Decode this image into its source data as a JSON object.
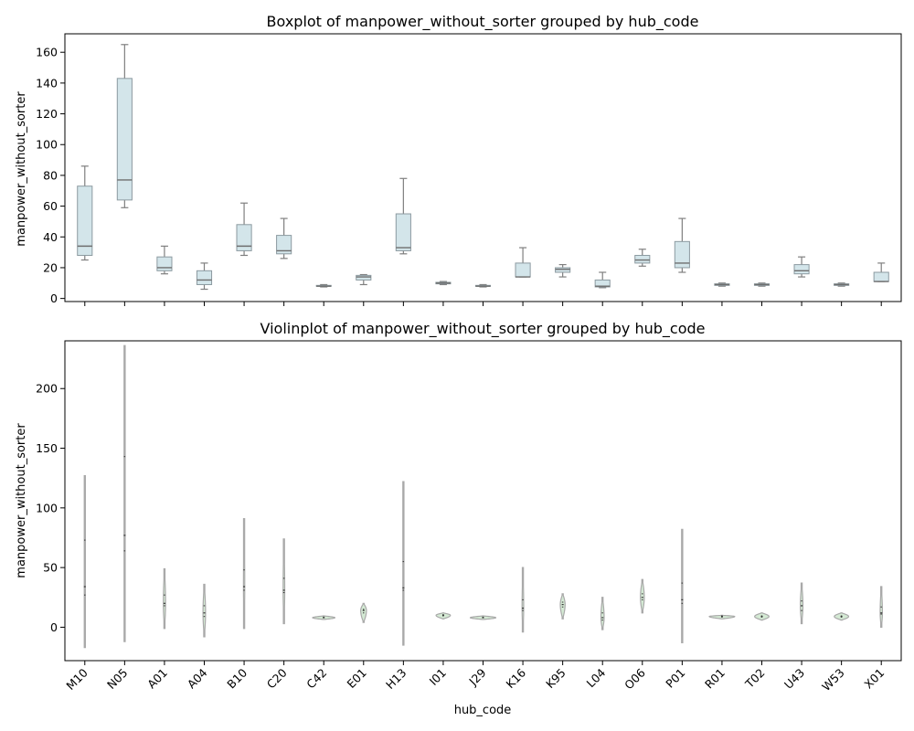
{
  "chart_data": [
    {
      "type": "box",
      "title": "Boxplot of manpower_without_sorter grouped by hub_code",
      "xlabel": "",
      "ylabel": "manpower_without_sorter",
      "ylim": [
        -2,
        172
      ],
      "yticks": [
        0,
        20,
        40,
        60,
        80,
        100,
        120,
        140,
        160
      ],
      "categories": [
        "M10",
        "N05",
        "A01",
        "A04",
        "B10",
        "C20",
        "C42",
        "E01",
        "H13",
        "I01",
        "J29",
        "K16",
        "K95",
        "L04",
        "O06",
        "P01",
        "R01",
        "T02",
        "U43",
        "W53",
        "X01"
      ],
      "boxes": [
        {
          "whislo": 25,
          "q1": 28,
          "med": 34,
          "q3": 73,
          "whishi": 86
        },
        {
          "whislo": 59,
          "q1": 64,
          "med": 77,
          "q3": 143,
          "whishi": 165
        },
        {
          "whislo": 16,
          "q1": 18,
          "med": 20,
          "q3": 27,
          "whishi": 34
        },
        {
          "whislo": 6,
          "q1": 9,
          "med": 12,
          "q3": 18,
          "whishi": 23
        },
        {
          "whislo": 28,
          "q1": 31,
          "med": 34,
          "q3": 48,
          "whishi": 62
        },
        {
          "whislo": 26,
          "q1": 29,
          "med": 31,
          "q3": 41,
          "whishi": 52
        },
        {
          "whislo": 7.5,
          "q1": 8,
          "med": 8,
          "q3": 8.5,
          "whishi": 9
        },
        {
          "whislo": 9,
          "q1": 12,
          "med": 14,
          "q3": 15,
          "whishi": 15.5
        },
        {
          "whislo": 29,
          "q1": 31,
          "med": 33,
          "q3": 55,
          "whishi": 78
        },
        {
          "whislo": 9,
          "q1": 9.5,
          "med": 10,
          "q3": 10.5,
          "whishi": 11
        },
        {
          "whislo": 7.5,
          "q1": 8,
          "med": 8,
          "q3": 8.5,
          "whishi": 9
        },
        {
          "whislo": 14,
          "q1": 14,
          "med": 14,
          "q3": 23,
          "whishi": 33
        },
        {
          "whislo": 14,
          "q1": 17,
          "med": 19,
          "q3": 20,
          "whishi": 22
        },
        {
          "whislo": 7,
          "q1": 7.5,
          "med": 8,
          "q3": 12,
          "whishi": 17
        },
        {
          "whislo": 21,
          "q1": 23,
          "med": 25,
          "q3": 28,
          "whishi": 32
        },
        {
          "whislo": 17,
          "q1": 20,
          "med": 23,
          "q3": 37,
          "whishi": 52
        },
        {
          "whislo": 8,
          "q1": 8.5,
          "med": 9,
          "q3": 9.5,
          "whishi": 10
        },
        {
          "whislo": 8,
          "q1": 8.5,
          "med": 9,
          "q3": 9.5,
          "whishi": 10
        },
        {
          "whislo": 14,
          "q1": 16,
          "med": 18,
          "q3": 22,
          "whishi": 27
        },
        {
          "whislo": 8,
          "q1": 8.5,
          "med": 9,
          "q3": 9.5,
          "whishi": 10
        },
        {
          "whislo": 11,
          "q1": 11,
          "med": 11,
          "q3": 17,
          "whishi": 23
        }
      ]
    },
    {
      "type": "violin",
      "title": "Violinplot of manpower_without_sorter grouped by hub_code",
      "xlabel": "hub_code",
      "ylabel": "manpower_without_sorter",
      "ylim": [
        -28,
        240
      ],
      "yticks": [
        0,
        50,
        100,
        150,
        200
      ],
      "categories": [
        "M10",
        "N05",
        "A01",
        "A04",
        "B10",
        "C20",
        "C42",
        "E01",
        "H13",
        "I01",
        "J29",
        "K16",
        "K95",
        "L04",
        "O06",
        "P01",
        "R01",
        "T02",
        "U43",
        "W53",
        "X01"
      ],
      "violins": [
        {
          "min": -17,
          "max": 127,
          "q1": 27,
          "med": 34,
          "q3": 73,
          "maxw": 0.03
        },
        {
          "min": -12,
          "max": 236,
          "q1": 64,
          "med": 77,
          "q3": 143,
          "maxw": 0.03
        },
        {
          "min": -1,
          "max": 49,
          "q1": 18,
          "med": 20,
          "q3": 27,
          "maxw": 0.07
        },
        {
          "min": -8,
          "max": 36,
          "q1": 9,
          "med": 12,
          "q3": 18,
          "maxw": 0.08
        },
        {
          "min": -1,
          "max": 91,
          "q1": 31,
          "med": 34,
          "q3": 48,
          "maxw": 0.04
        },
        {
          "min": 3,
          "max": 74,
          "q1": 29,
          "med": 31,
          "q3": 41,
          "maxw": 0.05
        },
        {
          "min": 6.5,
          "max": 9.5,
          "q1": 8,
          "med": 8,
          "q3": 8.5,
          "maxw": 0.7
        },
        {
          "min": 4,
          "max": 20,
          "q1": 12,
          "med": 14,
          "q3": 15,
          "maxw": 0.18
        },
        {
          "min": -15,
          "max": 122,
          "q1": 31,
          "med": 33,
          "q3": 55,
          "maxw": 0.03
        },
        {
          "min": 7,
          "max": 12,
          "q1": 9.5,
          "med": 10,
          "q3": 10.5,
          "maxw": 0.45
        },
        {
          "min": 6.5,
          "max": 9.5,
          "q1": 8,
          "med": 8,
          "q3": 8.5,
          "maxw": 0.8
        },
        {
          "min": -4,
          "max": 50,
          "q1": 14,
          "med": 16,
          "q3": 23,
          "maxw": 0.05
        },
        {
          "min": 7,
          "max": 28,
          "q1": 17,
          "med": 19,
          "q3": 21,
          "maxw": 0.15
        },
        {
          "min": -2,
          "max": 25,
          "q1": 6,
          "med": 8,
          "q3": 12,
          "maxw": 0.1
        },
        {
          "min": 12,
          "max": 40,
          "q1": 23,
          "med": 25,
          "q3": 28,
          "maxw": 0.12
        },
        {
          "min": -13,
          "max": 82,
          "q1": 20,
          "med": 23,
          "q3": 37,
          "maxw": 0.03
        },
        {
          "min": 7,
          "max": 10,
          "q1": 8.5,
          "med": 9,
          "q3": 9.5,
          "maxw": 0.8
        },
        {
          "min": 6,
          "max": 12,
          "q1": 8.5,
          "med": 9,
          "q3": 9.5,
          "maxw": 0.45
        },
        {
          "min": 3,
          "max": 37,
          "q1": 14,
          "med": 18,
          "q3": 22,
          "maxw": 0.08
        },
        {
          "min": 6,
          "max": 12,
          "q1": 8.5,
          "med": 9,
          "q3": 9.5,
          "maxw": 0.45
        },
        {
          "min": 0,
          "max": 34,
          "q1": 11,
          "med": 12,
          "q3": 17,
          "maxw": 0.07
        }
      ]
    }
  ],
  "colors": {
    "box_fill": "#d3e5ea",
    "box_edge": "#8c9aa0",
    "whisker": "#7f7f7f",
    "violin_fill": "#d4ead4",
    "violin_edge": "#a9a9a9",
    "inner": "#333333"
  }
}
